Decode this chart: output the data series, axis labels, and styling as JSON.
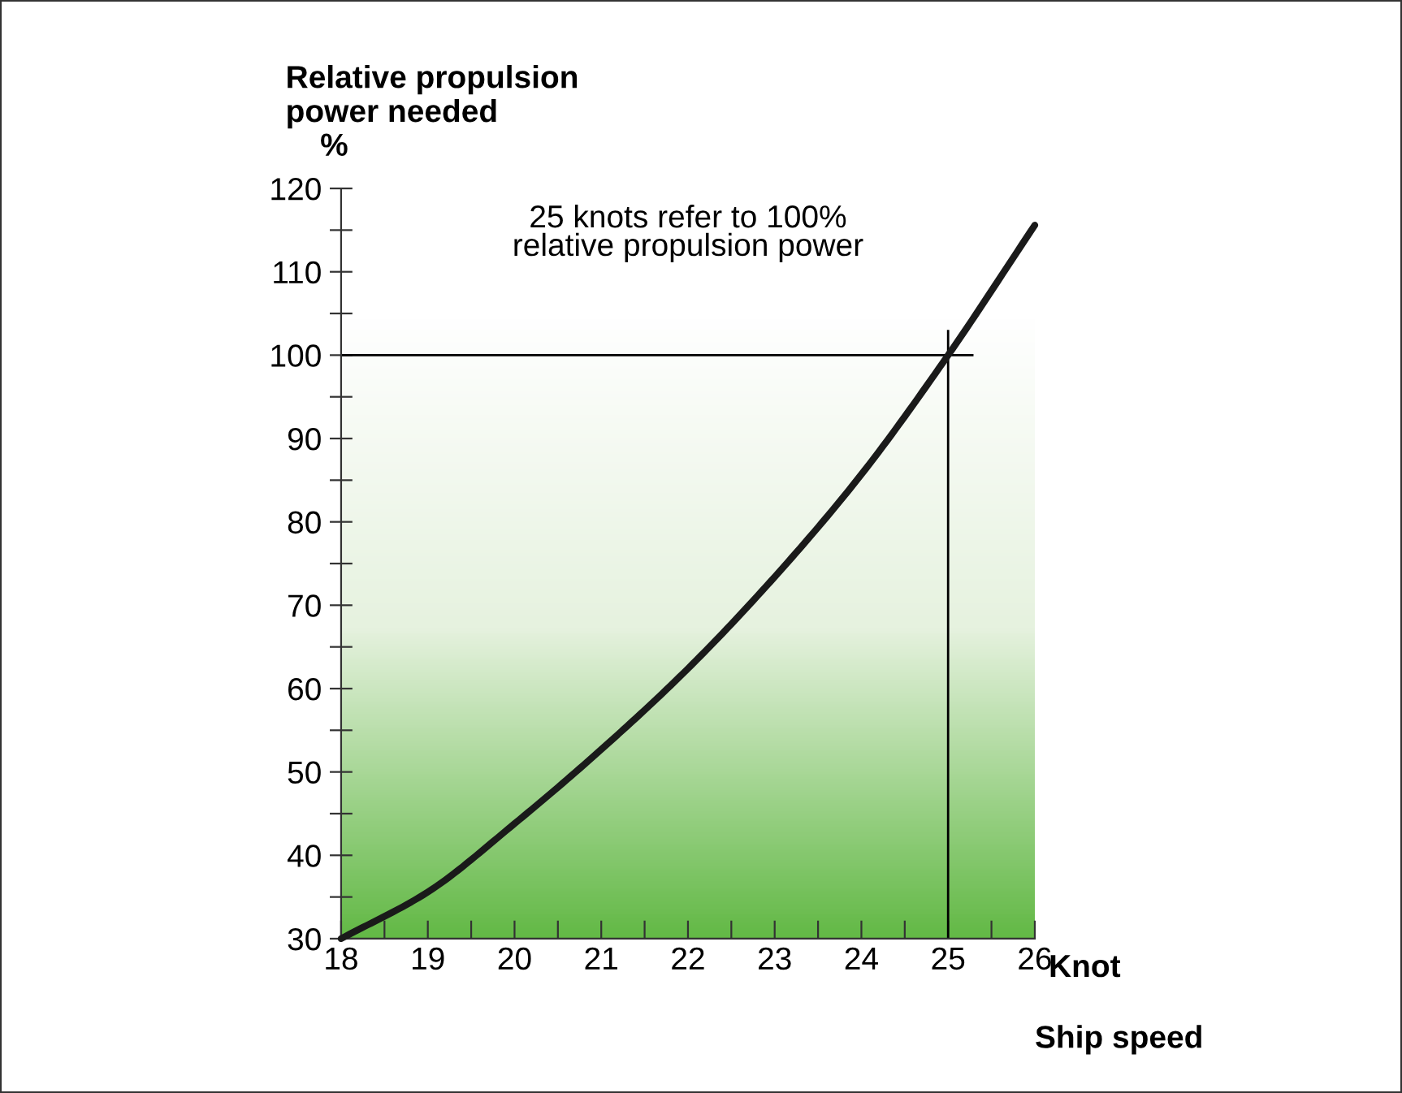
{
  "chart_data": {
    "type": "line",
    "ylabel": "Relative propulsion\npower needed",
    "xlabel": "Ship speed",
    "annotations": [
      "%",
      "Knot",
      "25 knots refer to 100%\nrelative propulsion power"
    ],
    "x": [
      18,
      19,
      20,
      21,
      22,
      23,
      24,
      25,
      26
    ],
    "series": [
      {
        "color": "#1a1a1a",
        "values": [
          30,
          35.6,
          43.8,
          52.7,
          62.4,
          73.4,
          85.7,
          100,
          115.6
        ]
      }
    ],
    "xlim": [
      18,
      26
    ],
    "ylim": [
      30,
      120
    ],
    "xticks": [
      18,
      {
        "value": 18.5,
        "label": null
      },
      19,
      {
        "value": 19.5,
        "label": null
      },
      20,
      {
        "value": 20.5,
        "label": null
      },
      21,
      {
        "value": 21.5,
        "label": null
      },
      22,
      {
        "value": 22.5,
        "label": null
      },
      23,
      {
        "value": 23.5,
        "label": null
      },
      24,
      {
        "value": 24.5,
        "label": null
      },
      25,
      {
        "value": 25.5,
        "label": null
      },
      26
    ],
    "yticks": [
      30,
      {
        "value": 35,
        "label": null
      },
      40,
      {
        "value": 45,
        "label": null
      },
      50,
      {
        "value": 55,
        "label": null
      },
      60,
      {
        "value": 65,
        "label": null
      },
      70,
      {
        "value": 75,
        "label": null
      },
      80,
      {
        "value": 85,
        "label": null
      },
      90,
      {
        "value": 95,
        "label": null
      },
      100,
      {
        "value": 105,
        "label": null
      },
      110,
      {
        "value": 115,
        "label": null
      },
      120
    ],
    "ref_lines": [
      {
        "axis": "y",
        "value": 100,
        "color": "#000000"
      },
      {
        "axis": "x",
        "value": 25,
        "color": "#000000"
      }
    ],
    "grid": false,
    "legend": false,
    "marker": "none",
    "line_style": "solid"
  }
}
